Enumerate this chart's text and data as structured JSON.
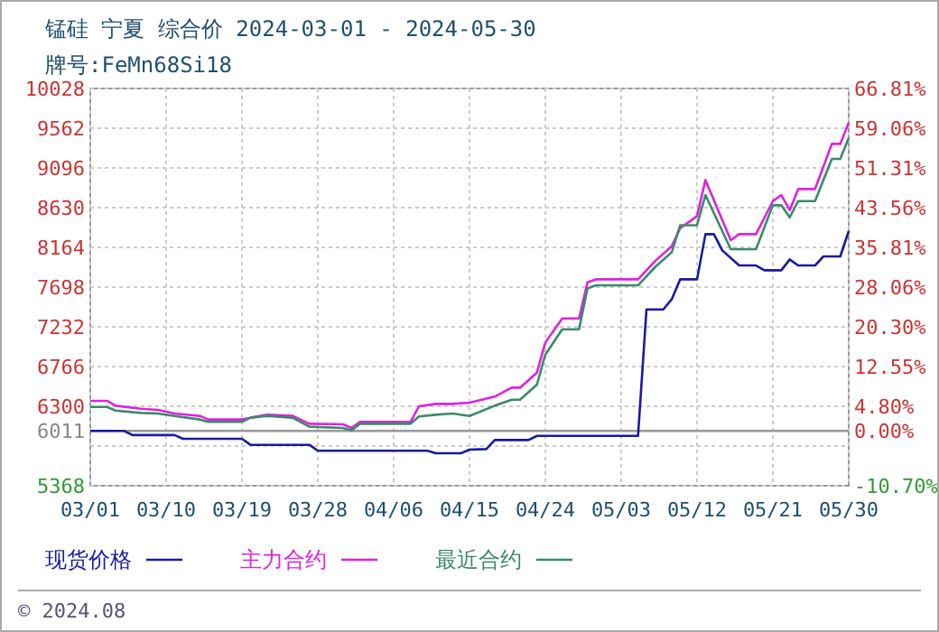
{
  "chart_data": {
    "type": "line",
    "title": "锰硅 宁夏 综合价 2024-03-01 - 2024-05-30",
    "subtitle": "牌号:FeMn68Si18",
    "xlim": [
      "--03-01",
      "--05-30"
    ],
    "xticks": [
      {
        "value": "--03-01",
        "label": "03/01"
      },
      {
        "value": "--03-10",
        "label": "03/10"
      },
      {
        "value": "--03-19",
        "label": "03/19"
      },
      {
        "value": "--03-28",
        "label": "03/28"
      },
      {
        "value": "--04-06",
        "label": "04/06"
      },
      {
        "value": "--04-15",
        "label": "04/15"
      },
      {
        "value": "--04-24",
        "label": "04/24"
      },
      {
        "value": "--05-03",
        "label": "05/03"
      },
      {
        "value": "--05-12",
        "label": "05/12"
      },
      {
        "value": "--05-21",
        "label": "05/21"
      },
      {
        "value": "--05-30",
        "label": "05/30"
      }
    ],
    "ylim": [
      5368,
      10028
    ],
    "yticks": [
      5368,
      {
        "value": 5834,
        "label": null
      },
      6011,
      6300,
      6766,
      7232,
      7698,
      8164,
      8630,
      9096,
      9562,
      10028
    ],
    "y2lim": [
      -10.7,
      66.81
    ],
    "y2ticks": [
      {
        "value": -10.7,
        "label": "-10.70%"
      },
      {
        "value": 0,
        "label": "0.00%"
      },
      {
        "value": 4.8,
        "label": "4.80%"
      },
      {
        "value": 12.55,
        "label": "12.55%"
      },
      {
        "value": 20.3,
        "label": "20.30%"
      },
      {
        "value": 28.06,
        "label": "28.06%"
      },
      {
        "value": 35.81,
        "label": "35.81%"
      },
      {
        "value": 43.56,
        "label": "43.56%"
      },
      {
        "value": 51.31,
        "label": "51.31%"
      },
      {
        "value": 59.06,
        "label": "59.06%"
      },
      {
        "value": 66.81,
        "label": "66.81%"
      }
    ],
    "ref_lines": [
      {
        "axis": "y",
        "value": 6011,
        "color": "#999999"
      }
    ],
    "grid": true,
    "legend": "bottom",
    "annotations": [
      "© 2024.08"
    ],
    "series": [
      {
        "name": "现货价格",
        "color": "#1a1aa0",
        "x": [
          "--03-01",
          "--03-05",
          "--03-06",
          "--03-11",
          "--03-12",
          "--03-19",
          "--03-20",
          "--03-27",
          "--03-28",
          "--04-10",
          "--04-11",
          "--04-14",
          "--04-15",
          "--04-17",
          "--04-18",
          "--04-22",
          "--04-23",
          "--05-05",
          "--05-06",
          "--05-08",
          "--05-09",
          "--05-10",
          "--05-12",
          "--05-13",
          "--05-14",
          "--05-15",
          "--05-17",
          "--05-19",
          "--05-20",
          "--05-22",
          "--05-23",
          "--05-24",
          "--05-26",
          "--05-27",
          "--05-29",
          "--05-30"
        ],
        "values": [
          6011,
          6011,
          5962,
          5962,
          5919,
          5919,
          5848,
          5848,
          5778,
          5778,
          5749,
          5749,
          5792,
          5798,
          5904,
          5904,
          5953,
          5953,
          7436,
          7436,
          7556,
          7789,
          7789,
          8319,
          8319,
          8128,
          7952,
          7952,
          7895,
          7895,
          8022,
          7952,
          7952,
          8058,
          8058,
          8355
        ]
      },
      {
        "name": "主力合约",
        "color": "#e020e0",
        "x": [
          "--03-01",
          "--03-03",
          "--03-04",
          "--03-07",
          "--03-09",
          "--03-11",
          "--03-14",
          "--03-15",
          "--03-19",
          "--03-20",
          "--03-22",
          "--03-25",
          "--03-27",
          "--03-31",
          "--04-01",
          "--04-02",
          "--04-08",
          "--04-09",
          "--04-11",
          "--04-13",
          "--04-15",
          "--04-18",
          "--04-20",
          "--04-21",
          "--04-23",
          "--04-24",
          "--04-26",
          "--04-28",
          "--04-29",
          "--04-30",
          "--05-05",
          "--05-07",
          "--05-09",
          "--05-10",
          "--05-12",
          "--05-13",
          "--05-16",
          "--05-17",
          "--05-19",
          "--05-21",
          "--05-22",
          "--05-23",
          "--05-24",
          "--05-26",
          "--05-28",
          "--05-29",
          "--05-30"
        ],
        "values": [
          6364,
          6364,
          6307,
          6271,
          6257,
          6216,
          6187,
          6145,
          6145,
          6166,
          6201,
          6187,
          6095,
          6088,
          6046,
          6117,
          6117,
          6300,
          6328,
          6328,
          6343,
          6413,
          6518,
          6518,
          6695,
          7048,
          7330,
          7330,
          7753,
          7789,
          7789,
          8001,
          8177,
          8389,
          8531,
          8954,
          8249,
          8319,
          8319,
          8707,
          8778,
          8601,
          8848,
          8848,
          9378,
          9378,
          9626
        ]
      },
      {
        "name": "最近合约",
        "color": "#3a8a6a",
        "x": [
          "--03-01",
          "--03-03",
          "--03-04",
          "--03-07",
          "--03-09",
          "--03-11",
          "--03-14",
          "--03-15",
          "--03-19",
          "--03-20",
          "--03-22",
          "--03-25",
          "--03-27",
          "--03-31",
          "--04-01",
          "--04-02",
          "--04-08",
          "--04-09",
          "--04-11",
          "--04-13",
          "--04-15",
          "--04-18",
          "--04-20",
          "--04-21",
          "--04-23",
          "--04-24",
          "--04-26",
          "--04-28",
          "--04-29",
          "--04-30",
          "--05-05",
          "--05-07",
          "--05-09",
          "--05-10",
          "--05-12",
          "--05-13",
          "--05-16",
          "--05-17",
          "--05-19",
          "--05-21",
          "--05-22",
          "--05-23",
          "--05-24",
          "--05-26",
          "--05-28",
          "--05-29",
          "--05-30"
        ],
        "values": [
          6292,
          6292,
          6250,
          6222,
          6216,
          6187,
          6145,
          6117,
          6117,
          6166,
          6187,
          6166,
          6060,
          6046,
          6018,
          6095,
          6095,
          6180,
          6201,
          6216,
          6186,
          6307,
          6377,
          6377,
          6554,
          6907,
          7203,
          7203,
          7683,
          7719,
          7719,
          7931,
          8107,
          8424,
          8424,
          8778,
          8143,
          8143,
          8143,
          8658,
          8658,
          8516,
          8707,
          8707,
          9202,
          9202,
          9448
        ]
      }
    ]
  }
}
